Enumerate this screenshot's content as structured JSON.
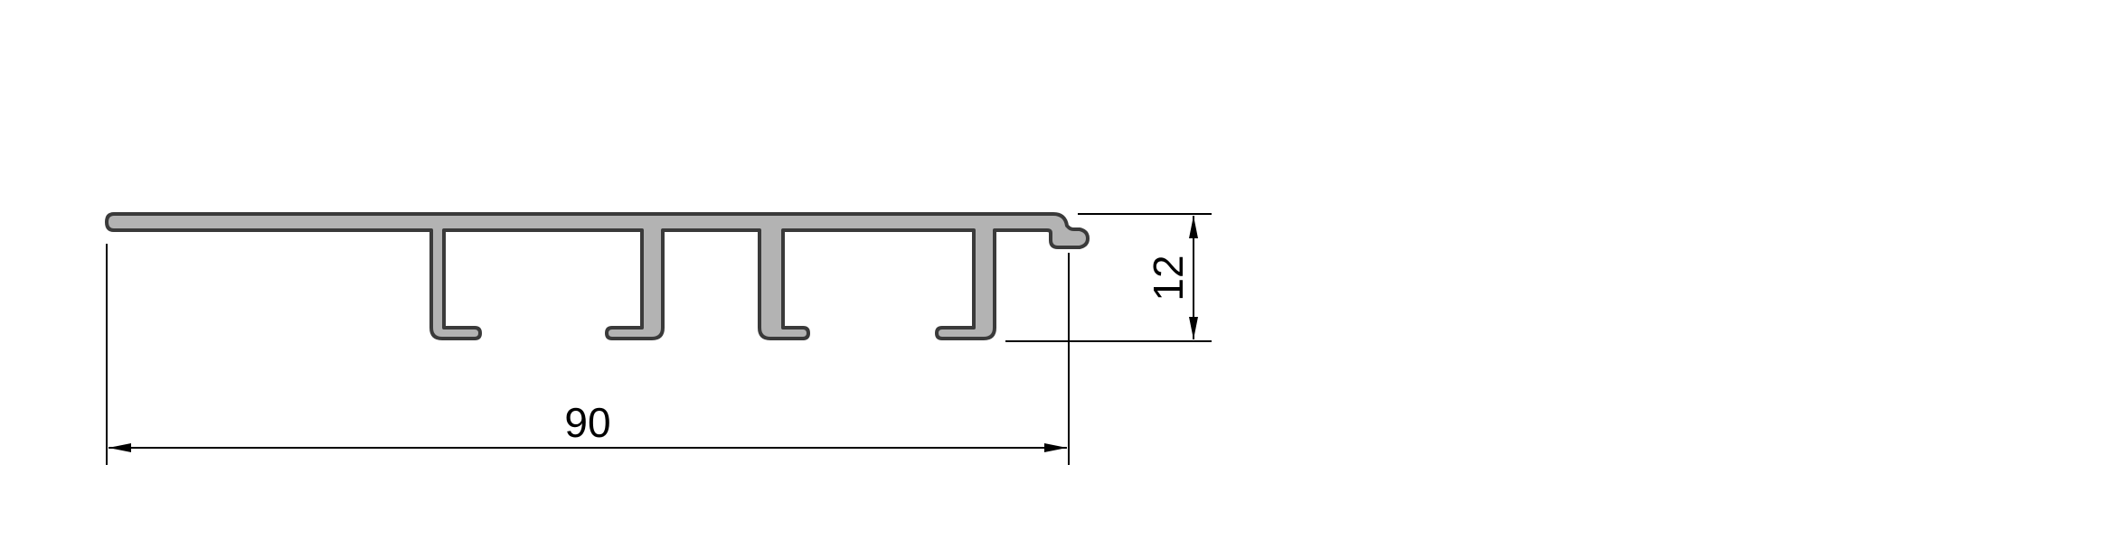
{
  "drawing": {
    "dimensions": {
      "width": {
        "value": "90"
      },
      "height": {
        "value": "12"
      }
    },
    "colors": {
      "profile_fill": "#b3b3b3",
      "profile_stroke": "#3a3a3a",
      "dimension_line": "#000000",
      "background": "#ffffff"
    }
  }
}
